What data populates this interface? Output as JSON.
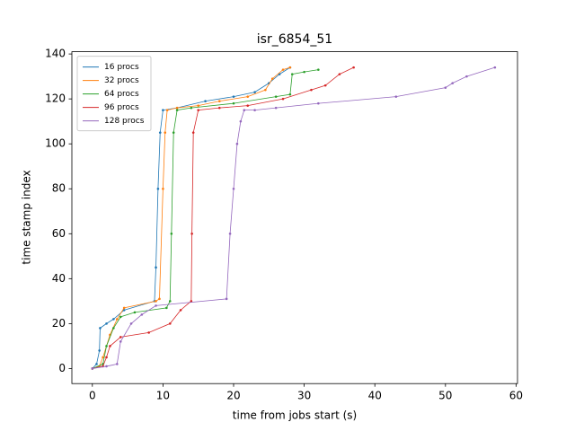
{
  "chart_data": {
    "type": "line",
    "title": "isr_6854_51",
    "x_label": "time from jobs start (s)",
    "y_label": "time stamp index",
    "xlim": [
      -2.9,
      60.2
    ],
    "ylim": [
      -6.7,
      141
    ],
    "xticks": [
      0,
      10,
      20,
      30,
      40,
      50,
      60
    ],
    "yticks": [
      0,
      20,
      40,
      60,
      80,
      100,
      120,
      140
    ],
    "legend": "upper left",
    "series": [
      {
        "name": "16 procs",
        "color": "#1f77b4",
        "x": [
          0,
          0.6,
          1,
          1.1,
          2,
          3,
          4.5,
          8.8,
          9,
          9.3,
          9.6,
          10,
          12,
          16,
          20,
          23,
          25,
          26.5,
          28
        ],
        "values": [
          0,
          2,
          8,
          18,
          20,
          22,
          26,
          30,
          45,
          80,
          105,
          115,
          116,
          119,
          121,
          123,
          127,
          131,
          134
        ]
      },
      {
        "name": "32 procs",
        "color": "#ff7f0e",
        "x": [
          0,
          1,
          1.5,
          2.5,
          3.5,
          4.5,
          9,
          9.5,
          10,
          10.3,
          10.6,
          12,
          15,
          18,
          22,
          24.5,
          25.5,
          27,
          28
        ],
        "values": [
          0,
          1,
          5,
          15,
          22,
          27,
          30,
          31,
          80,
          105,
          115,
          116,
          117,
          119,
          121,
          124,
          129,
          133,
          134
        ]
      },
      {
        "name": "64 procs",
        "color": "#2ca02c",
        "x": [
          0,
          1.5,
          2,
          3,
          4,
          6,
          10.5,
          11,
          11.2,
          11.5,
          12,
          14,
          20,
          26,
          28,
          28.3,
          30,
          32
        ],
        "values": [
          0,
          2,
          10,
          18,
          23,
          25,
          27,
          30,
          60,
          105,
          115,
          116,
          118,
          121,
          122,
          131,
          132,
          133
        ]
      },
      {
        "name": "96 procs",
        "color": "#d62728",
        "x": [
          0,
          1.5,
          2,
          2.5,
          4,
          8,
          11,
          12.5,
          14,
          14.1,
          14.3,
          15,
          18,
          22,
          27,
          31,
          33,
          35,
          37
        ],
        "values": [
          0,
          1,
          5,
          10,
          14,
          16,
          20,
          26,
          30,
          60,
          105,
          115,
          116,
          117,
          120,
          124,
          126,
          131,
          134
        ]
      },
      {
        "name": "128 procs",
        "color": "#9467bd",
        "x": [
          0,
          2,
          3.5,
          4,
          5.5,
          7,
          9,
          19,
          19.5,
          20,
          20.5,
          21,
          21.5,
          23,
          26,
          32,
          43,
          50,
          51,
          53,
          57
        ],
        "values": [
          0,
          1,
          2,
          12,
          20,
          24,
          28,
          31,
          60,
          80,
          100,
          110,
          115,
          115,
          116,
          118,
          121,
          125,
          127,
          130,
          134
        ]
      }
    ]
  }
}
